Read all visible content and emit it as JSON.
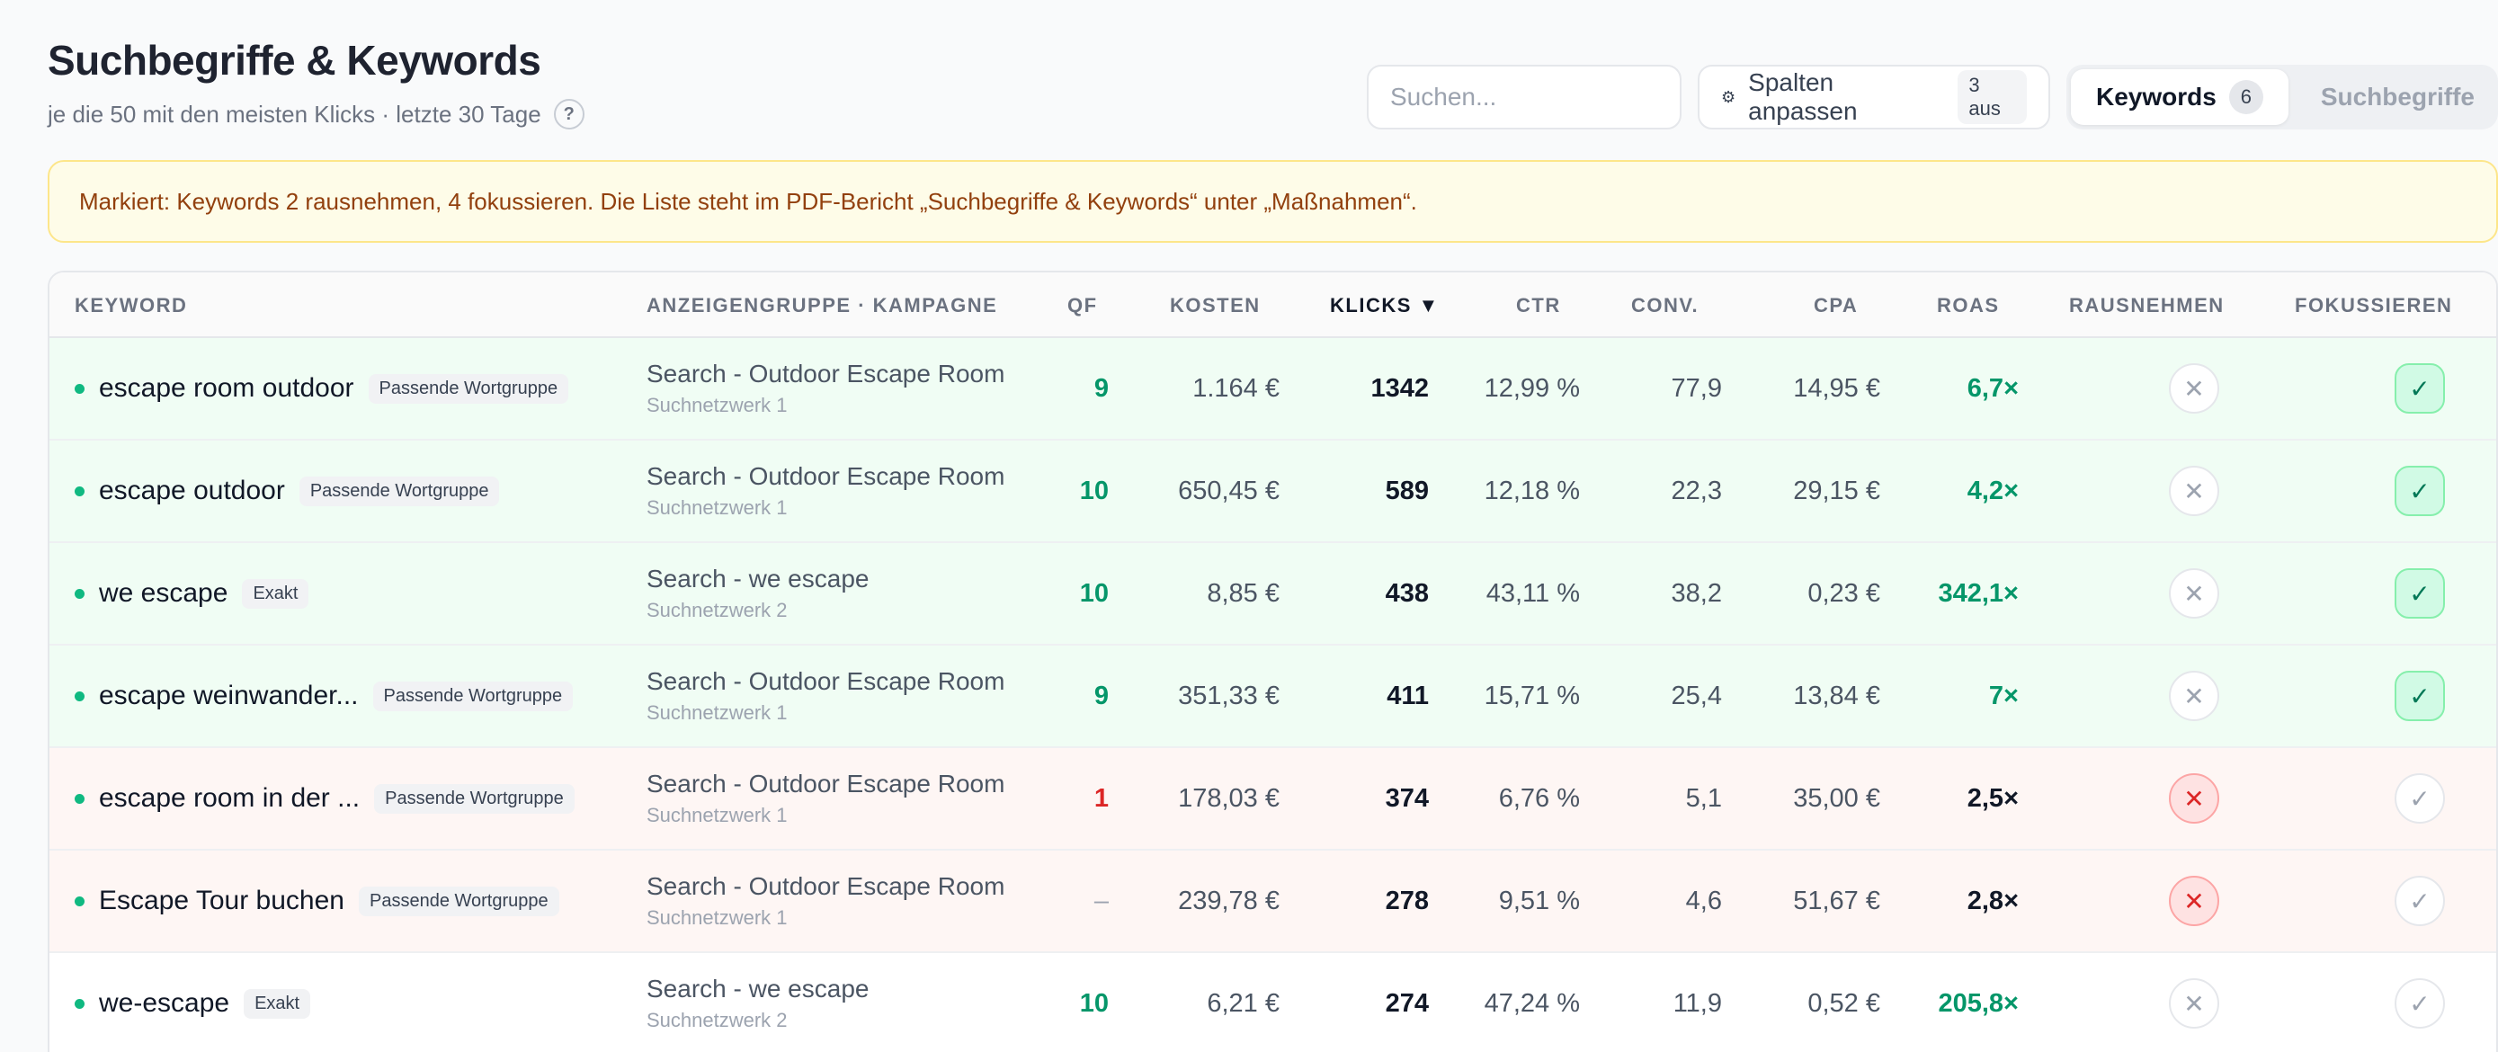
{
  "header": {
    "title": "Suchbegriffe & Keywords",
    "subtitle": "je die 50 mit den meisten Klicks · letzte 30 Tage",
    "help": "?"
  },
  "toolbar": {
    "search_placeholder": "Suchen...",
    "columns_icon": "⚙",
    "columns_label": "Spalten anpassen",
    "columns_badge": "3 aus",
    "tabs": [
      {
        "label": "Keywords",
        "badge": "6"
      },
      {
        "label": "Suchbegriffe"
      }
    ]
  },
  "banner": {
    "text": "Markiert: Keywords 2 rausnehmen, 4 fokussieren. Die Liste steht im PDF-Bericht „Suchbegriffe & Keywords“ unter „Maßnahmen“."
  },
  "table": {
    "columns": {
      "keyword": "KEYWORD",
      "adgroup": "ANZEIGENGRUPPE · KAMPAGNE",
      "qf": "QF",
      "kosten": "KOSTEN",
      "klicks": "KLICKS ▼",
      "ctr": "CTR",
      "conv": "CONV.",
      "cpa": "CPA",
      "roas": "ROAS",
      "remove": "RAUSNEHMEN",
      "focus": "FOKUSSIEREN"
    },
    "rows": [
      {
        "keyword": "escape room outdoor",
        "match": "Passende Wortgruppe",
        "adgroup": "Search - Outdoor Escape Room",
        "campaign": "Suchnetzwerk 1",
        "qf": "9",
        "kosten": "1.164 €",
        "klicks": "1342",
        "ctr": "12,99 %",
        "conv": "77,9",
        "cpa": "14,95 €",
        "roas": "6,7×",
        "x": "✕",
        "check": "✓"
      },
      {
        "keyword": "escape outdoor",
        "match": "Passende Wortgruppe",
        "adgroup": "Search - Outdoor Escape Room",
        "campaign": "Suchnetzwerk 1",
        "qf": "10",
        "kosten": "650,45 €",
        "klicks": "589",
        "ctr": "12,18 %",
        "conv": "22,3",
        "cpa": "29,15 €",
        "roas": "4,2×",
        "x": "✕",
        "check": "✓"
      },
      {
        "keyword": "we escape",
        "match": "Exakt",
        "adgroup": "Search - we escape",
        "campaign": "Suchnetzwerk 2",
        "qf": "10",
        "kosten": "8,85 €",
        "klicks": "438",
        "ctr": "43,11 %",
        "conv": "38,2",
        "cpa": "0,23 €",
        "roas": "342,1×",
        "x": "✕",
        "check": "✓"
      },
      {
        "keyword": "escape weinwander...",
        "match": "Passende Wortgruppe",
        "adgroup": "Search - Outdoor Escape Room",
        "campaign": "Suchnetzwerk 1",
        "qf": "9",
        "kosten": "351,33 €",
        "klicks": "411",
        "ctr": "15,71 %",
        "conv": "25,4",
        "cpa": "13,84 €",
        "roas": "7×",
        "x": "✕",
        "check": "✓"
      },
      {
        "keyword": "escape room in der ...",
        "match": "Passende Wortgruppe",
        "adgroup": "Search - Outdoor Escape Room",
        "campaign": "Suchnetzwerk 1",
        "qf": "1",
        "kosten": "178,03 €",
        "klicks": "374",
        "ctr": "6,76 %",
        "conv": "5,1",
        "cpa": "35,00 €",
        "roas": "2,5×",
        "x": "✕",
        "check": "✓"
      },
      {
        "keyword": "Escape Tour buchen",
        "match": "Passende Wortgruppe",
        "adgroup": "Search - Outdoor Escape Room",
        "campaign": "Suchnetzwerk 1",
        "qf": "–",
        "kosten": "239,78 €",
        "klicks": "278",
        "ctr": "9,51 %",
        "conv": "4,6",
        "cpa": "51,67 €",
        "roas": "2,8×",
        "x": "✕",
        "check": "✓"
      },
      {
        "keyword": "we-escape",
        "match": "Exakt",
        "adgroup": "Search - we escape",
        "campaign": "Suchnetzwerk 2",
        "qf": "10",
        "kosten": "6,21 €",
        "klicks": "274",
        "ctr": "47,24 %",
        "conv": "11,9",
        "cpa": "0,52 €",
        "roas": "205,8×",
        "x": "✕",
        "check": "✓"
      }
    ]
  }
}
